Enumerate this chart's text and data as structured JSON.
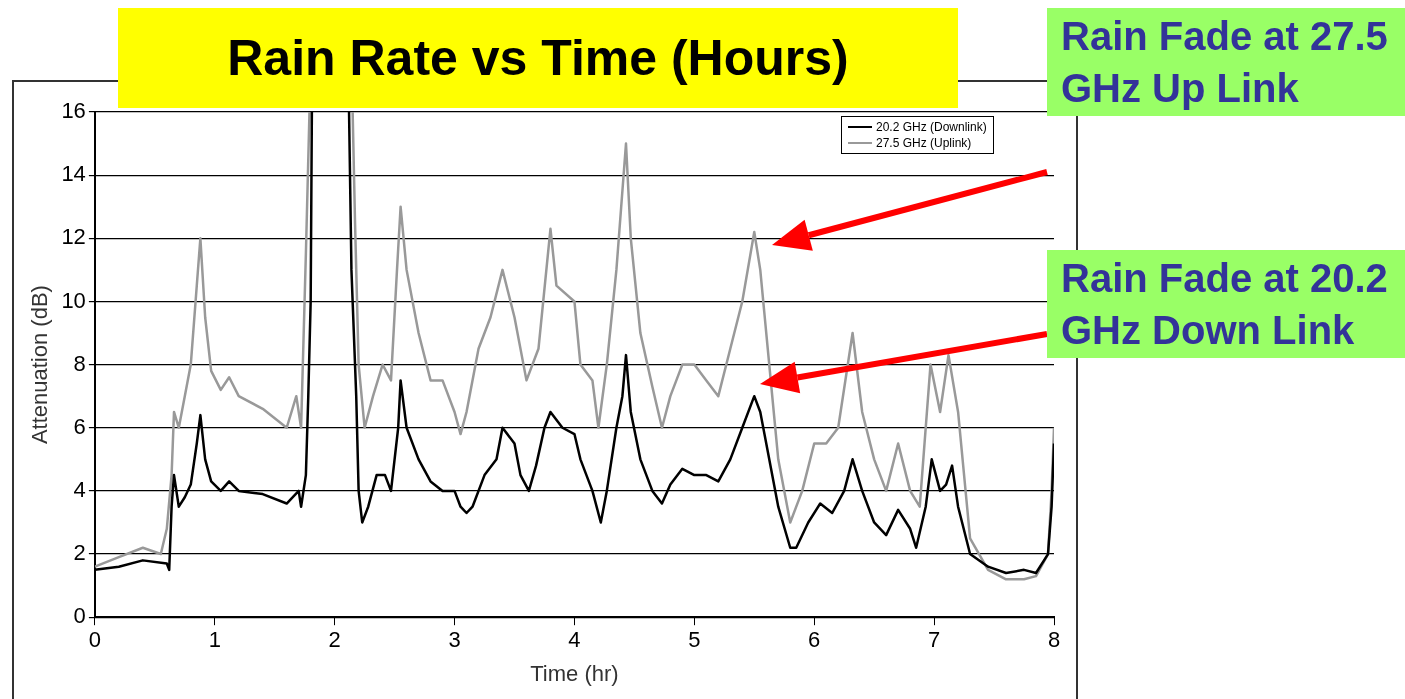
{
  "chart_data": {
    "type": "line",
    "title": "Rain Rate vs Time (Hours)",
    "xlabel": "Time (hr)",
    "ylabel": "Attenuation (dB)",
    "xlim": [
      0,
      8
    ],
    "xticks": [
      0,
      1,
      2,
      3,
      4,
      5,
      6,
      7,
      8
    ],
    "ylim": [
      0,
      16
    ],
    "yticks": [
      0,
      2,
      4,
      6,
      8,
      10,
      12,
      14,
      16
    ],
    "grid": "y",
    "legend": "top right",
    "marker": "none",
    "line_style": "solid",
    "series": [
      {
        "name": "20.2 GHz (Downlink)",
        "color": "#000000",
        "x": [
          0,
          0.2,
          0.4,
          0.6,
          0.62,
          0.64,
          0.66,
          0.7,
          0.75,
          0.8,
          0.85,
          0.88,
          0.92,
          0.97,
          1.05,
          1.12,
          1.2,
          1.4,
          1.6,
          1.7,
          1.72,
          1.76,
          1.78,
          1.8,
          1.81,
          1.95,
          2.12,
          2.14,
          2.18,
          2.2,
          2.23,
          2.28,
          2.35,
          2.42,
          2.47,
          2.53,
          2.55,
          2.6,
          2.7,
          2.8,
          2.9,
          3.0,
          3.05,
          3.1,
          3.15,
          3.25,
          3.35,
          3.4,
          3.5,
          3.55,
          3.62,
          3.68,
          3.75,
          3.8,
          3.9,
          4.0,
          4.05,
          4.15,
          4.22,
          4.27,
          4.35,
          4.4,
          4.43,
          4.47,
          4.55,
          4.65,
          4.73,
          4.8,
          4.9,
          5.0,
          5.1,
          5.2,
          5.3,
          5.4,
          5.5,
          5.55,
          5.6,
          5.7,
          5.8,
          5.85,
          5.95,
          6.05,
          6.15,
          6.25,
          6.32,
          6.4,
          6.5,
          6.6,
          6.7,
          6.8,
          6.85,
          6.93,
          6.98,
          7.05,
          7.1,
          7.15,
          7.2,
          7.3,
          7.45,
          7.6,
          7.75,
          7.85,
          7.95,
          7.98,
          8.0
        ],
        "values": [
          1.5,
          1.6,
          1.8,
          1.7,
          1.5,
          3.5,
          4.5,
          3.5,
          3.8,
          4.2,
          5.5,
          6.4,
          5.0,
          4.3,
          4.0,
          4.3,
          4.0,
          3.9,
          3.6,
          4.0,
          3.5,
          4.5,
          7.0,
          10,
          16,
          null,
          16,
          11,
          7,
          4.0,
          3.0,
          3.5,
          4.5,
          4.5,
          4.0,
          6.0,
          7.5,
          6.0,
          5.0,
          4.3,
          4.0,
          4.0,
          3.5,
          3.3,
          3.5,
          4.5,
          5.0,
          6.0,
          5.5,
          4.5,
          4.0,
          4.8,
          6.0,
          6.5,
          6.0,
          5.8,
          5.0,
          4.0,
          3.0,
          4.0,
          6.0,
          7.0,
          8.3,
          6.5,
          5.0,
          4.0,
          3.6,
          4.2,
          4.7,
          4.5,
          4.5,
          4.3,
          5.0,
          6.0,
          7.0,
          6.5,
          5.5,
          3.5,
          2.2,
          2.2,
          3.0,
          3.6,
          3.3,
          4.0,
          5.0,
          4.0,
          3.0,
          2.6,
          3.4,
          2.8,
          2.2,
          3.5,
          5.0,
          4.0,
          4.2,
          4.8,
          3.5,
          2.0,
          1.6,
          1.4,
          1.5,
          1.4,
          2.0,
          3.5,
          5.5
        ]
      },
      {
        "name": "27.5 GHz (Uplink)",
        "color": "#999999",
        "x": [
          0,
          0.2,
          0.4,
          0.55,
          0.6,
          0.64,
          0.66,
          0.7,
          0.75,
          0.8,
          0.85,
          0.88,
          0.92,
          0.97,
          1.05,
          1.12,
          1.2,
          1.4,
          1.6,
          1.68,
          1.72,
          1.76,
          1.79,
          1.95,
          2.15,
          2.17,
          2.2,
          2.25,
          2.32,
          2.4,
          2.47,
          2.52,
          2.55,
          2.6,
          2.7,
          2.8,
          2.9,
          3.0,
          3.05,
          3.1,
          3.2,
          3.3,
          3.4,
          3.5,
          3.6,
          3.7,
          3.8,
          3.85,
          4.0,
          4.05,
          4.15,
          4.2,
          4.27,
          4.35,
          4.43,
          4.47,
          4.55,
          4.65,
          4.73,
          4.8,
          4.9,
          5.0,
          5.1,
          5.2,
          5.3,
          5.4,
          5.5,
          5.55,
          5.6,
          5.7,
          5.8,
          5.9,
          6.0,
          6.1,
          6.2,
          6.32,
          6.4,
          6.5,
          6.6,
          6.7,
          6.8,
          6.88,
          6.97,
          7.05,
          7.12,
          7.2,
          7.3,
          7.45,
          7.6,
          7.75,
          7.85,
          7.95,
          7.98,
          8.0
        ],
        "values": [
          1.6,
          1.9,
          2.2,
          2.0,
          2.8,
          4.5,
          6.5,
          6.0,
          7.0,
          8.0,
          10.5,
          12.0,
          9.5,
          7.8,
          7.2,
          7.6,
          7.0,
          6.6,
          6.0,
          7.0,
          6.0,
          11.5,
          16,
          null,
          16,
          12.5,
          8.0,
          6.0,
          7.0,
          8.0,
          7.5,
          11,
          13.0,
          11.0,
          9.0,
          7.5,
          7.5,
          6.5,
          5.8,
          6.5,
          8.5,
          9.5,
          11.0,
          9.5,
          7.5,
          8.5,
          12.3,
          10.5,
          10.0,
          8.0,
          7.5,
          6.0,
          8.0,
          11.0,
          15.0,
          12.0,
          9.0,
          7.3,
          6.0,
          7.0,
          8.0,
          8.0,
          7.5,
          7.0,
          8.5,
          10.0,
          12.2,
          11.0,
          9.0,
          5.0,
          3.0,
          4.0,
          5.5,
          5.5,
          6.0,
          9.0,
          6.5,
          5.0,
          4.0,
          5.5,
          4.0,
          3.5,
          8.0,
          6.5,
          8.3,
          6.5,
          2.5,
          1.5,
          1.2,
          1.2,
          1.3,
          2.0,
          4.0,
          6.0
        ]
      }
    ],
    "annotations": [
      "Rain Fade at 27.5 GHz Up Link",
      "Rain Fade at 20.2 GHz Down Link"
    ]
  }
}
